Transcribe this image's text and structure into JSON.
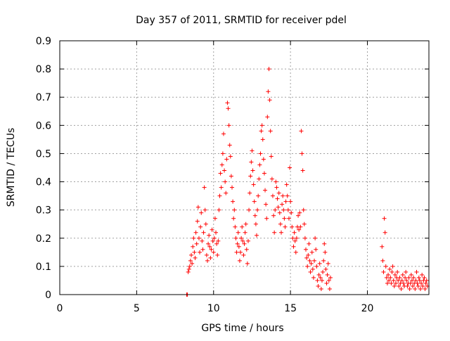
{
  "chart_data": {
    "type": "scatter",
    "title": "Day 357 of 2011, SRMTID for receiver pdel",
    "xlabel": "GPS time / hours",
    "ylabel": "SRMTID / TECUs",
    "xlim": [
      0,
      24
    ],
    "ylim": [
      0,
      0.9
    ],
    "grid": true,
    "marker": "+",
    "marker_color": "#ff0000",
    "x_ticks": [
      0,
      5,
      10,
      15,
      20
    ],
    "y_ticks": [
      0,
      0.1,
      0.2,
      0.3,
      0.4,
      0.5,
      0.6,
      0.7,
      0.8,
      0.9
    ],
    "x_tick_labels": [
      "0",
      "5",
      "10",
      "15",
      "20"
    ],
    "y_tick_labels": [
      "0",
      "0.1",
      "0.2",
      "0.3",
      "0.4",
      "0.5",
      "0.6",
      "0.7",
      "0.8",
      "0.9"
    ],
    "series": [
      {
        "name": "SRMTID",
        "points": [
          [
            8.25,
            0.0
          ],
          [
            8.3,
            0.0
          ],
          [
            8.35,
            0.08
          ],
          [
            8.4,
            0.09
          ],
          [
            8.45,
            0.1
          ],
          [
            8.5,
            0.12
          ],
          [
            8.55,
            0.14
          ],
          [
            8.6,
            0.11
          ],
          [
            8.65,
            0.17
          ],
          [
            8.7,
            0.2
          ],
          [
            8.75,
            0.15
          ],
          [
            8.8,
            0.13
          ],
          [
            8.85,
            0.22
          ],
          [
            8.9,
            0.18
          ],
          [
            8.95,
            0.26
          ],
          [
            9.0,
            0.31
          ],
          [
            9.05,
            0.2
          ],
          [
            9.1,
            0.15
          ],
          [
            9.15,
            0.24
          ],
          [
            9.2,
            0.29
          ],
          [
            9.25,
            0.19
          ],
          [
            9.3,
            0.16
          ],
          [
            9.35,
            0.22
          ],
          [
            9.4,
            0.38
          ],
          [
            9.45,
            0.3
          ],
          [
            9.5,
            0.25
          ],
          [
            9.55,
            0.14
          ],
          [
            9.6,
            0.12
          ],
          [
            9.65,
            0.18
          ],
          [
            9.7,
            0.21
          ],
          [
            9.75,
            0.17
          ],
          [
            9.8,
            0.13
          ],
          [
            9.85,
            0.16
          ],
          [
            9.9,
            0.23
          ],
          [
            9.95,
            0.19
          ],
          [
            10.0,
            0.15
          ],
          [
            10.05,
            0.2
          ],
          [
            10.1,
            0.27
          ],
          [
            10.15,
            0.22
          ],
          [
            10.2,
            0.18
          ],
          [
            10.25,
            0.14
          ],
          [
            10.3,
            0.19
          ],
          [
            10.35,
            0.3
          ],
          [
            10.4,
            0.35
          ],
          [
            10.45,
            0.43
          ],
          [
            10.5,
            0.38
          ],
          [
            10.55,
            0.46
          ],
          [
            10.6,
            0.5
          ],
          [
            10.65,
            0.57
          ],
          [
            10.7,
            0.44
          ],
          [
            10.75,
            0.4
          ],
          [
            10.8,
            0.36
          ],
          [
            10.85,
            0.48
          ],
          [
            10.9,
            0.68
          ],
          [
            10.95,
            0.66
          ],
          [
            11.0,
            0.6
          ],
          [
            11.05,
            0.53
          ],
          [
            11.1,
            0.49
          ],
          [
            11.15,
            0.42
          ],
          [
            11.2,
            0.38
          ],
          [
            11.25,
            0.33
          ],
          [
            11.3,
            0.27
          ],
          [
            11.35,
            0.3
          ],
          [
            11.4,
            0.24
          ],
          [
            11.45,
            0.2
          ],
          [
            11.5,
            0.15
          ],
          [
            11.55,
            0.18
          ],
          [
            11.6,
            0.22
          ],
          [
            11.65,
            0.17
          ],
          [
            11.7,
            0.12
          ],
          [
            11.75,
            0.15
          ],
          [
            11.8,
            0.2
          ],
          [
            11.85,
            0.24
          ],
          [
            11.9,
            0.19
          ],
          [
            11.95,
            0.14
          ],
          [
            12.0,
            0.18
          ],
          [
            12.05,
            0.22
          ],
          [
            12.1,
            0.25
          ],
          [
            12.15,
            0.16
          ],
          [
            12.2,
            0.11
          ],
          [
            12.25,
            0.19
          ],
          [
            12.3,
            0.3
          ],
          [
            12.35,
            0.36
          ],
          [
            12.4,
            0.42
          ],
          [
            12.45,
            0.47
          ],
          [
            12.5,
            0.51
          ],
          [
            12.55,
            0.44
          ],
          [
            12.6,
            0.39
          ],
          [
            12.65,
            0.33
          ],
          [
            12.7,
            0.28
          ],
          [
            12.75,
            0.25
          ],
          [
            12.8,
            0.21
          ],
          [
            12.85,
            0.3
          ],
          [
            12.9,
            0.35
          ],
          [
            12.95,
            0.41
          ],
          [
            13.0,
            0.46
          ],
          [
            13.05,
            0.5
          ],
          [
            13.1,
            0.58
          ],
          [
            13.15,
            0.6
          ],
          [
            13.2,
            0.55
          ],
          [
            13.25,
            0.48
          ],
          [
            13.3,
            0.43
          ],
          [
            13.35,
            0.37
          ],
          [
            13.4,
            0.32
          ],
          [
            13.45,
            0.27
          ],
          [
            13.5,
            0.63
          ],
          [
            13.55,
            0.72
          ],
          [
            13.6,
            0.8
          ],
          [
            13.65,
            0.69
          ],
          [
            13.7,
            0.58
          ],
          [
            13.75,
            0.49
          ],
          [
            13.8,
            0.41
          ],
          [
            13.85,
            0.35
          ],
          [
            13.9,
            0.28
          ],
          [
            13.95,
            0.22
          ],
          [
            14.0,
            0.3
          ],
          [
            14.05,
            0.4
          ],
          [
            14.1,
            0.38
          ],
          [
            14.15,
            0.34
          ],
          [
            14.2,
            0.31
          ],
          [
            14.25,
            0.36
          ],
          [
            14.3,
            0.29
          ],
          [
            14.35,
            0.25
          ],
          [
            14.4,
            0.22
          ],
          [
            14.45,
            0.32
          ],
          [
            14.5,
            0.35
          ],
          [
            14.55,
            0.3
          ],
          [
            14.6,
            0.27
          ],
          [
            14.65,
            0.24
          ],
          [
            14.7,
            0.33
          ],
          [
            14.75,
            0.39
          ],
          [
            14.8,
            0.35
          ],
          [
            14.85,
            0.3
          ],
          [
            14.9,
            0.27
          ],
          [
            14.95,
            0.45
          ],
          [
            15.0,
            0.33
          ],
          [
            15.05,
            0.29
          ],
          [
            15.1,
            0.24
          ],
          [
            15.15,
            0.2
          ],
          [
            15.2,
            0.17
          ],
          [
            15.25,
            0.22
          ],
          [
            15.3,
            0.19
          ],
          [
            15.35,
            0.15
          ],
          [
            15.4,
            0.2
          ],
          [
            15.45,
            0.24
          ],
          [
            15.5,
            0.28
          ],
          [
            15.55,
            0.23
          ],
          [
            15.6,
            0.29
          ],
          [
            15.65,
            0.24
          ],
          [
            15.7,
            0.58
          ],
          [
            15.75,
            0.5
          ],
          [
            15.8,
            0.44
          ],
          [
            15.85,
            0.3
          ],
          [
            15.9,
            0.25
          ],
          [
            15.95,
            0.2
          ],
          [
            16.0,
            0.16
          ],
          [
            16.05,
            0.13
          ],
          [
            16.1,
            0.1
          ],
          [
            16.15,
            0.14
          ],
          [
            16.2,
            0.18
          ],
          [
            16.25,
            0.12
          ],
          [
            16.3,
            0.08
          ],
          [
            16.35,
            0.11
          ],
          [
            16.4,
            0.15
          ],
          [
            16.45,
            0.09
          ],
          [
            16.5,
            0.06
          ],
          [
            16.55,
            0.12
          ],
          [
            16.6,
            0.2
          ],
          [
            16.65,
            0.16
          ],
          [
            16.7,
            0.1
          ],
          [
            16.75,
            0.05
          ],
          [
            16.8,
            0.03
          ],
          [
            16.85,
            0.07
          ],
          [
            16.9,
            0.11
          ],
          [
            16.95,
            0.06
          ],
          [
            17.0,
            0.02
          ],
          [
            17.05,
            0.05
          ],
          [
            17.1,
            0.08
          ],
          [
            17.15,
            0.12
          ],
          [
            17.2,
            0.18
          ],
          [
            17.25,
            0.15
          ],
          [
            17.3,
            0.09
          ],
          [
            17.35,
            0.04
          ],
          [
            17.4,
            0.07
          ],
          [
            17.45,
            0.11
          ],
          [
            17.5,
            0.05
          ],
          [
            17.55,
            0.02
          ],
          [
            17.6,
            0.06
          ],
          [
            20.95,
            0.17
          ],
          [
            21.0,
            0.12
          ],
          [
            21.05,
            0.08
          ],
          [
            21.1,
            0.27
          ],
          [
            21.15,
            0.22
          ],
          [
            21.2,
            0.1
          ],
          [
            21.25,
            0.06
          ],
          [
            21.3,
            0.04
          ],
          [
            21.35,
            0.07
          ],
          [
            21.4,
            0.05
          ],
          [
            21.45,
            0.09
          ],
          [
            21.5,
            0.06
          ],
          [
            21.55,
            0.04
          ],
          [
            21.6,
            0.08
          ],
          [
            21.65,
            0.1
          ],
          [
            21.7,
            0.05
          ],
          [
            21.75,
            0.03
          ],
          [
            21.8,
            0.07
          ],
          [
            21.85,
            0.04
          ],
          [
            21.9,
            0.06
          ],
          [
            21.95,
            0.08
          ],
          [
            22.0,
            0.05
          ],
          [
            22.05,
            0.03
          ],
          [
            22.1,
            0.06
          ],
          [
            22.15,
            0.04
          ],
          [
            22.2,
            0.02
          ],
          [
            22.25,
            0.05
          ],
          [
            22.3,
            0.07
          ],
          [
            22.35,
            0.04
          ],
          [
            22.4,
            0.03
          ],
          [
            22.45,
            0.06
          ],
          [
            22.5,
            0.08
          ],
          [
            22.55,
            0.05
          ],
          [
            22.6,
            0.03
          ],
          [
            22.65,
            0.04
          ],
          [
            22.7,
            0.06
          ],
          [
            22.75,
            0.02
          ],
          [
            22.8,
            0.04
          ],
          [
            22.85,
            0.07
          ],
          [
            22.9,
            0.05
          ],
          [
            22.95,
            0.03
          ],
          [
            23.0,
            0.06
          ],
          [
            23.05,
            0.04
          ],
          [
            23.1,
            0.02
          ],
          [
            23.15,
            0.05
          ],
          [
            23.2,
            0.08
          ],
          [
            23.25,
            0.04
          ],
          [
            23.3,
            0.03
          ],
          [
            23.35,
            0.06
          ],
          [
            23.4,
            0.05
          ],
          [
            23.45,
            0.02
          ],
          [
            23.5,
            0.04
          ],
          [
            23.55,
            0.07
          ],
          [
            23.6,
            0.03
          ],
          [
            23.65,
            0.05
          ],
          [
            23.7,
            0.06
          ],
          [
            23.75,
            0.02
          ],
          [
            23.8,
            0.04
          ],
          [
            23.85,
            0.05
          ],
          [
            23.9,
            0.03
          ]
        ]
      }
    ]
  }
}
